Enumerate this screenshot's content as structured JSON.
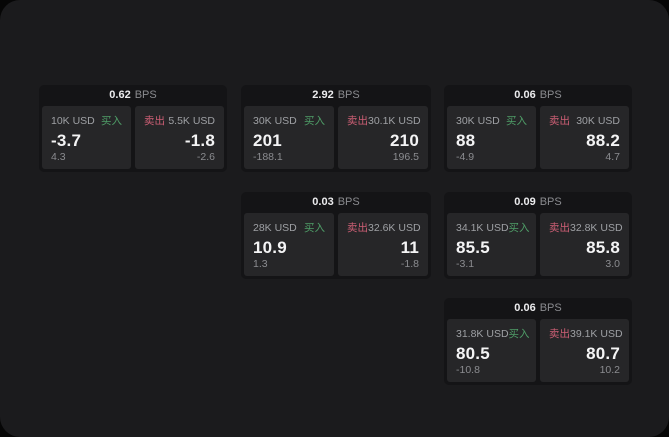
{
  "labels": {
    "buy": "买入",
    "sell": "卖出",
    "bps": "BPS"
  },
  "colors": {
    "screen_bg": "#1b1b1d",
    "card_bg": "#141416",
    "panel_bg": "#262628",
    "buy_green": "#4f9e68",
    "sell_red": "#cd5f75"
  },
  "cards": [
    {
      "bps": "0.62",
      "buy": {
        "amount": "10K USD",
        "value": "-3.7",
        "sub": "4.3"
      },
      "sell": {
        "amount": "5.5K USD",
        "value": "-1.8",
        "sub": "-2.6"
      }
    },
    {
      "bps": "2.92",
      "buy": {
        "amount": "30K USD",
        "value": "201",
        "sub": "-188.1"
      },
      "sell": {
        "amount": "30.1K USD",
        "value": "210",
        "sub": "196.5"
      }
    },
    {
      "bps": "0.06",
      "buy": {
        "amount": "30K USD",
        "value": "88",
        "sub": "-4.9"
      },
      "sell": {
        "amount": "30K USD",
        "value": "88.2",
        "sub": "4.7"
      }
    },
    {
      "bps": "0.03",
      "buy": {
        "amount": "28K USD",
        "value": "10.9",
        "sub": "1.3"
      },
      "sell": {
        "amount": "32.6K USD",
        "value": "11",
        "sub": "-1.8"
      }
    },
    {
      "bps": "0.09",
      "buy": {
        "amount": "34.1K USD",
        "value": "85.5",
        "sub": "-3.1"
      },
      "sell": {
        "amount": "32.8K USD",
        "value": "85.8",
        "sub": "3.0"
      }
    },
    {
      "bps": "0.06",
      "buy": {
        "amount": "31.8K USD",
        "value": "80.5",
        "sub": "-10.8"
      },
      "sell": {
        "amount": "39.1K USD",
        "value": "80.7",
        "sub": "10.2"
      }
    }
  ]
}
